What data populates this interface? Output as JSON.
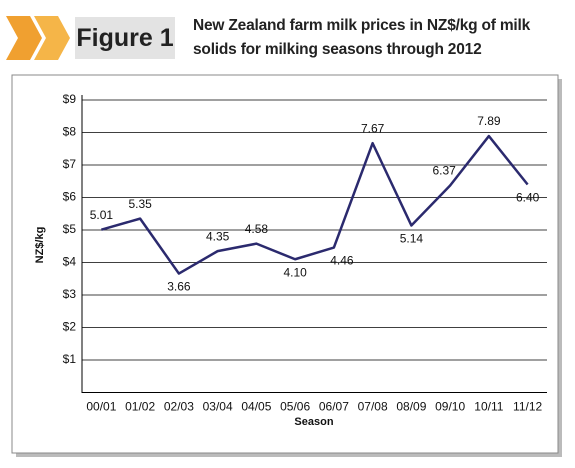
{
  "figure_label": "Figure 1",
  "chart_data": {
    "type": "line",
    "title": "New Zealand farm milk prices in NZ$/kg of milk solids for milking seasons through 2012",
    "x_label": "Season",
    "y_label": "NZ$/kg",
    "categories": [
      "00/01",
      "01/02",
      "02/03",
      "03/04",
      "04/05",
      "05/06",
      "06/07",
      "07/08",
      "08/09",
      "09/10",
      "10/11",
      "11/12"
    ],
    "values": [
      5.01,
      5.35,
      3.66,
      4.35,
      4.58,
      4.1,
      4.46,
      7.67,
      5.14,
      6.37,
      7.89,
      6.4
    ],
    "value_labels": [
      "5.01",
      "5.35",
      "3.66",
      "4.35",
      "4.58",
      "4.10",
      "4.46",
      "7.67",
      "5.14",
      "6.37",
      "7.89",
      "6.40"
    ],
    "color": "#2b2a6e",
    "ylim": [
      0,
      9
    ],
    "yticks": [
      {
        "value": 1,
        "label": "$1"
      },
      {
        "value": 2,
        "label": "$2"
      },
      {
        "value": 3,
        "label": "$3"
      },
      {
        "value": 4,
        "label": "$4"
      },
      {
        "value": 5,
        "label": "$5"
      },
      {
        "value": 6,
        "label": "$6"
      },
      {
        "value": 7,
        "label": "$7"
      },
      {
        "value": 8,
        "label": "$8"
      },
      {
        "value": 9,
        "label": "$9"
      }
    ],
    "grid": true
  }
}
